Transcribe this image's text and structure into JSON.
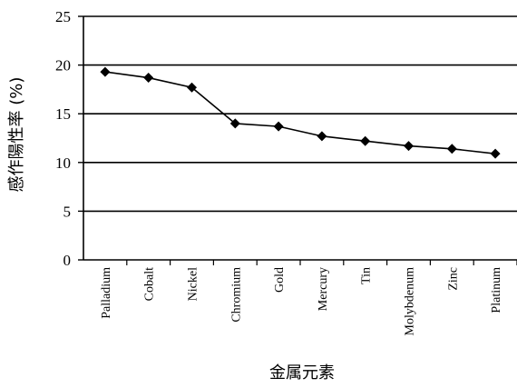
{
  "chart_data": {
    "type": "line",
    "title": "",
    "xlabel": "金属元素",
    "ylabel": "感作陽性率 (%)",
    "ylim": [
      0,
      25
    ],
    "yticks": [
      "0",
      "5",
      "10",
      "15",
      "20",
      "25"
    ],
    "grid": true,
    "legend": "none",
    "categories": [
      "Palladium",
      "Cobalt",
      "Nickel",
      "Chromium",
      "Gold",
      "Mercury",
      "Tin",
      "Molybdenum",
      "Zinc",
      "Platinum"
    ],
    "series": [
      {
        "values": [
          19.3,
          18.7,
          17.7,
          14.0,
          13.7,
          12.7,
          12.2,
          11.7,
          11.4,
          10.9
        ]
      }
    ],
    "colors": {
      "line": "#000000",
      "grid": "#000000",
      "marker": "#000000"
    }
  }
}
